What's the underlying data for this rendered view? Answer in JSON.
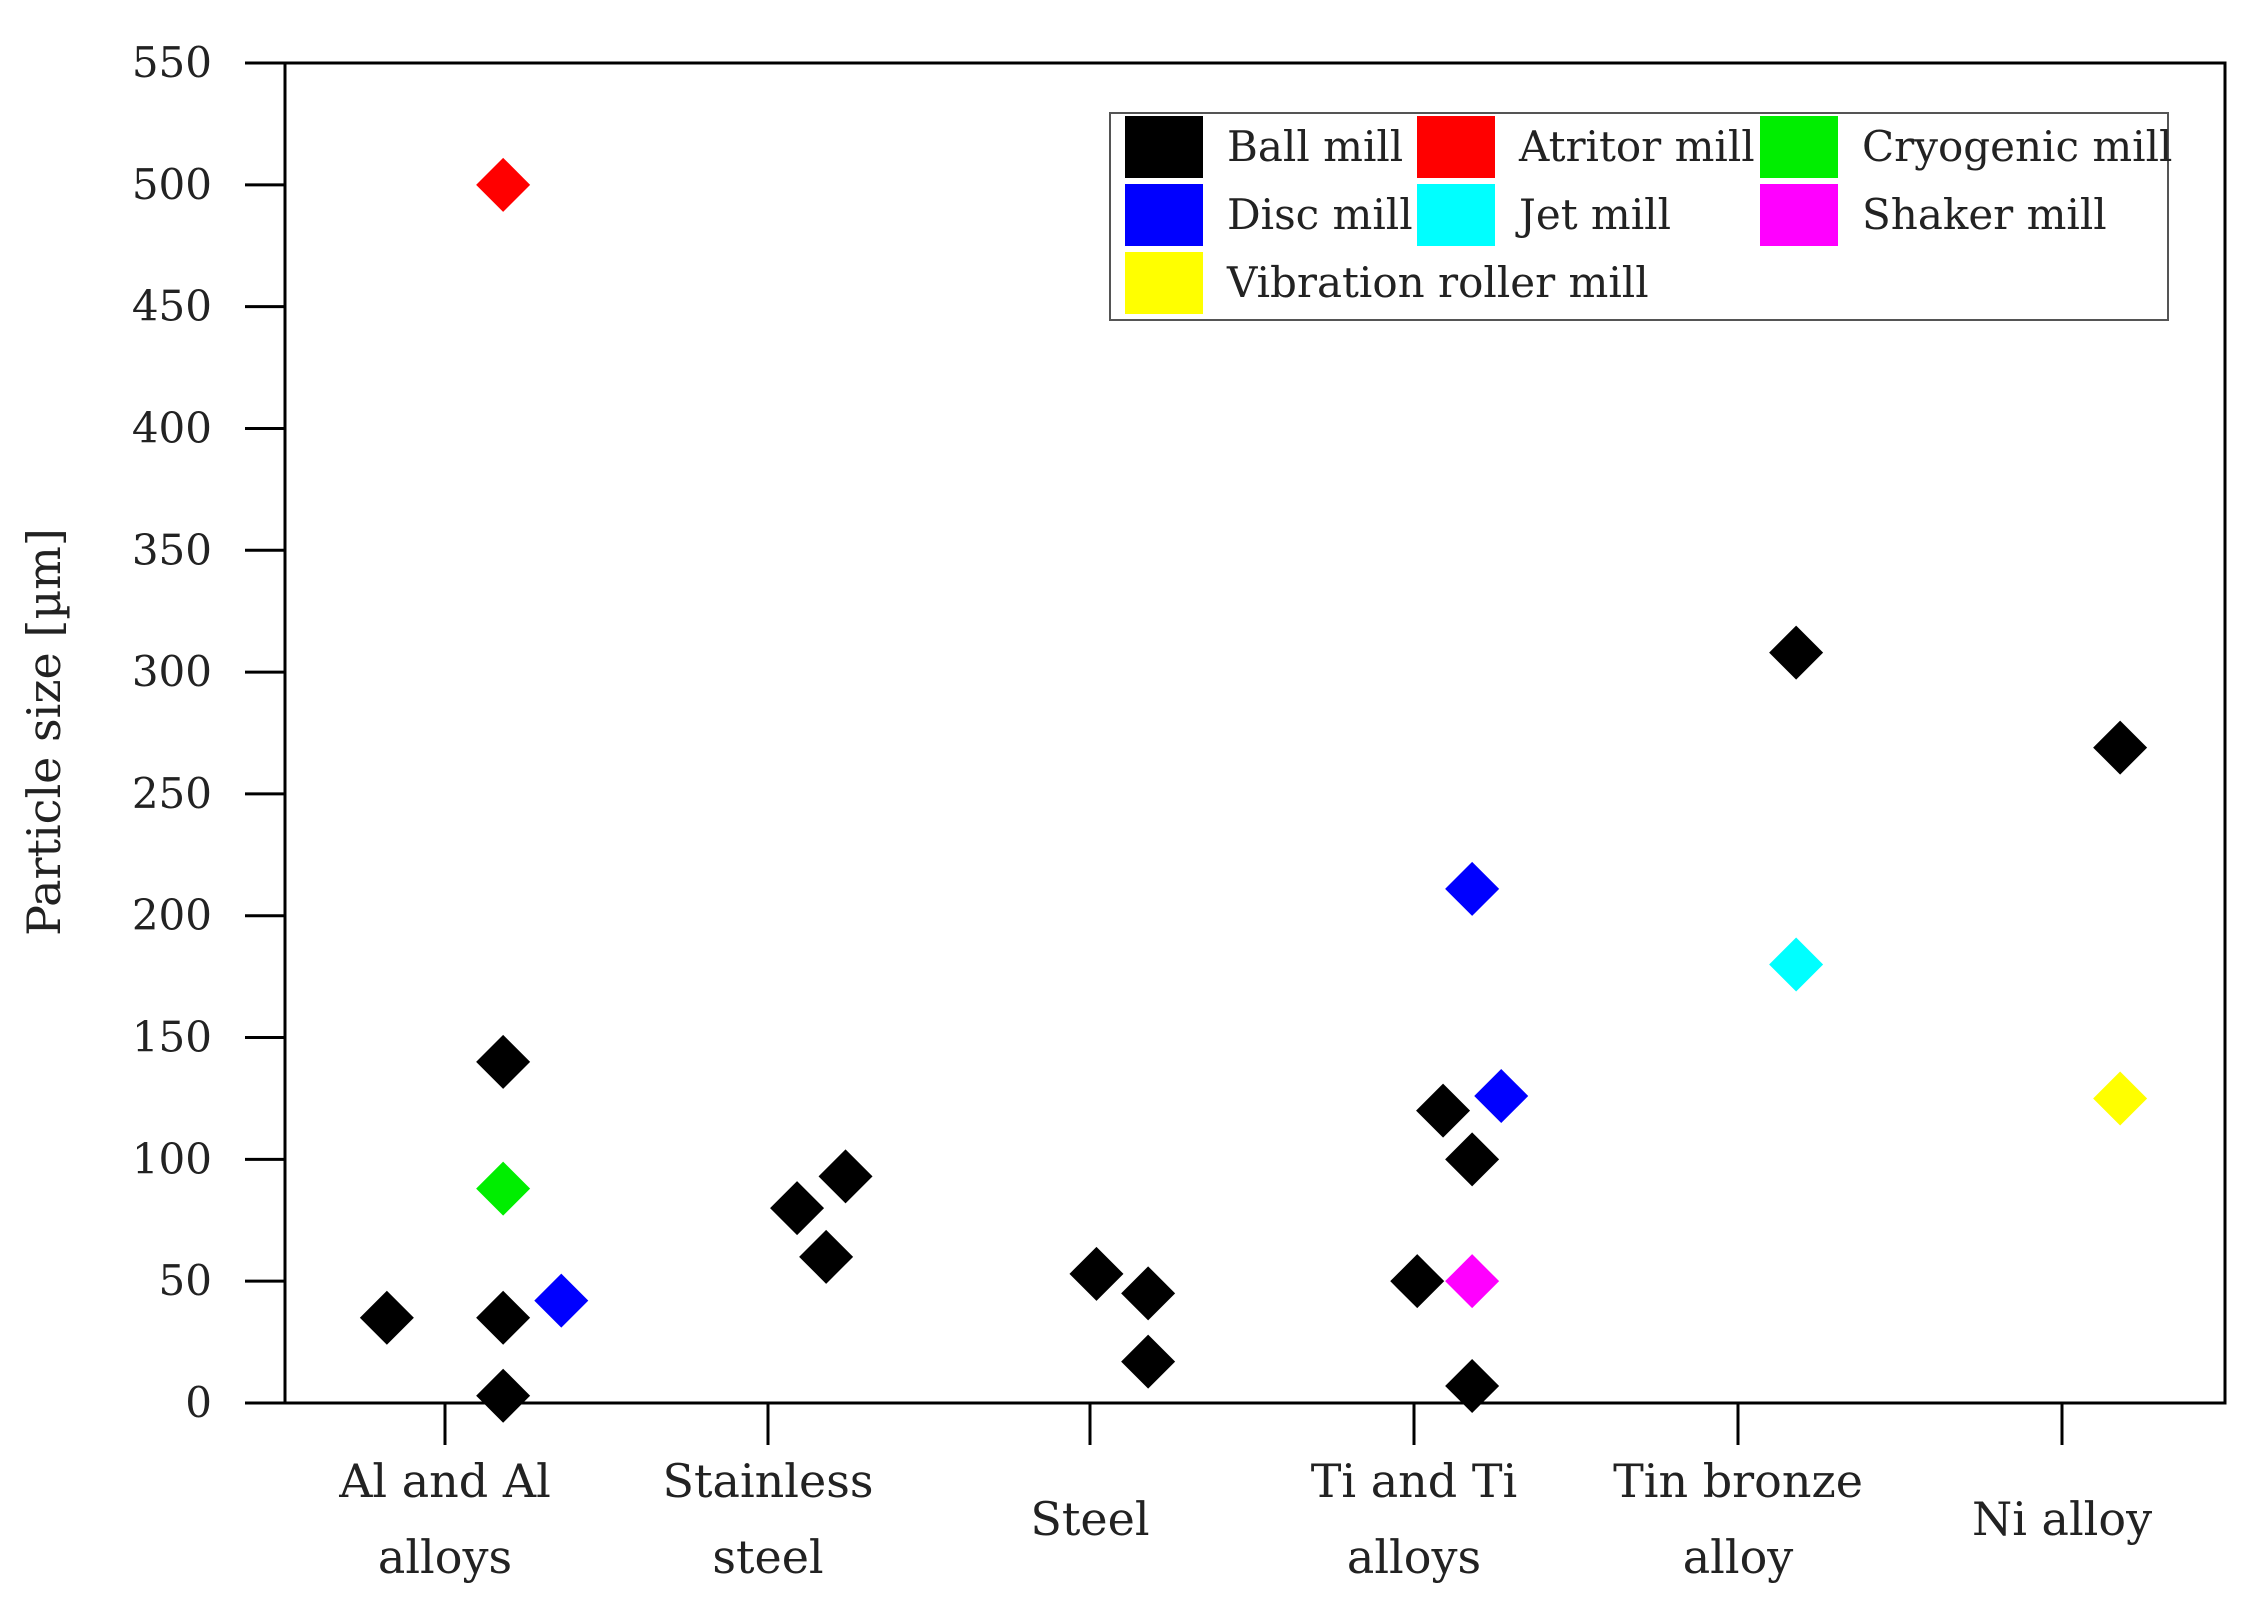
{
  "chart_data": {
    "type": "scatter",
    "title": "",
    "xlabel": "",
    "ylabel": "Particle size [µm]",
    "ylim": [
      0,
      550
    ],
    "yticks": [
      "0",
      "50",
      "100",
      "150",
      "200",
      "250",
      "300",
      "350",
      "400",
      "450",
      "500",
      "550"
    ],
    "ytick_values": [
      0,
      50,
      100,
      150,
      200,
      250,
      300,
      350,
      400,
      450,
      500,
      550
    ],
    "categories": [
      {
        "lines": [
          "Al and Al",
          "alloys"
        ]
      },
      {
        "lines": [
          "Stainless",
          "steel"
        ]
      },
      {
        "lines": [
          "Steel"
        ]
      },
      {
        "lines": [
          "Ti and Ti",
          "alloys"
        ]
      },
      {
        "lines": [
          "Tin bronze",
          "alloy"
        ]
      },
      {
        "lines": [
          "Ni alloy"
        ]
      }
    ],
    "grid": false,
    "legend_position": "top-right",
    "marker": "diamond",
    "series": [
      {
        "name": "Ball mill",
        "color": "#000000",
        "points": [
          {
            "cat": 0,
            "offset": -0.18,
            "y": 35
          },
          {
            "cat": 0,
            "offset": 0.18,
            "y": 35
          },
          {
            "cat": 0,
            "offset": 0.18,
            "y": 3
          },
          {
            "cat": 0,
            "offset": 0.18,
            "y": 140
          },
          {
            "cat": 1,
            "offset": 0.09,
            "y": 80
          },
          {
            "cat": 1,
            "offset": 0.18,
            "y": 60
          },
          {
            "cat": 1,
            "offset": 0.24,
            "y": 93
          },
          {
            "cat": 2,
            "offset": 0.02,
            "y": 53
          },
          {
            "cat": 2,
            "offset": 0.18,
            "y": 45
          },
          {
            "cat": 2,
            "offset": 0.18,
            "y": 17
          },
          {
            "cat": 3,
            "offset": 0.01,
            "y": 50
          },
          {
            "cat": 3,
            "offset": 0.09,
            "y": 120
          },
          {
            "cat": 3,
            "offset": 0.18,
            "y": 100
          },
          {
            "cat": 3,
            "offset": 0.18,
            "y": 7
          },
          {
            "cat": 4,
            "offset": 0.18,
            "y": 308
          },
          {
            "cat": 5,
            "offset": 0.18,
            "y": 269
          }
        ]
      },
      {
        "name": "Atritor mill",
        "color": "#ff0000",
        "points": [
          {
            "cat": 0,
            "offset": 0.18,
            "y": 500
          }
        ]
      },
      {
        "name": "Cryogenic mill",
        "color": "#00ee00",
        "points": [
          {
            "cat": 0,
            "offset": 0.18,
            "y": 88
          }
        ]
      },
      {
        "name": "Disc mill",
        "color": "#0000ff",
        "points": [
          {
            "cat": 0,
            "offset": 0.36,
            "y": 42
          },
          {
            "cat": 3,
            "offset": 0.18,
            "y": 211
          },
          {
            "cat": 3,
            "offset": 0.27,
            "y": 126
          }
        ]
      },
      {
        "name": "Jet mill",
        "color": "#00ffff",
        "points": [
          {
            "cat": 4,
            "offset": 0.18,
            "y": 180
          }
        ]
      },
      {
        "name": "Shaker mill",
        "color": "#ff00ff",
        "points": [
          {
            "cat": 3,
            "offset": 0.18,
            "y": 50
          }
        ]
      },
      {
        "name": "Vibration roller mill",
        "color": "#ffff00",
        "points": [
          {
            "cat": 5,
            "offset": 0.18,
            "y": 125
          }
        ]
      }
    ]
  }
}
